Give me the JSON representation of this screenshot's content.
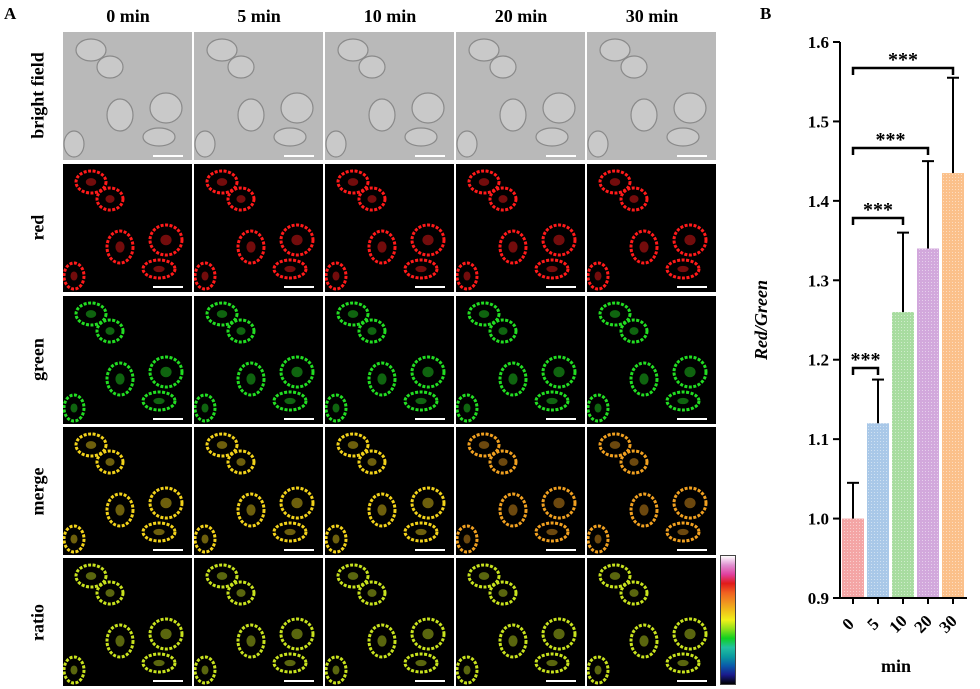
{
  "panel_a": {
    "letter": "A",
    "columns": [
      "0 min",
      "5 min",
      "10 min",
      "20 min",
      "30 min"
    ],
    "rows": [
      "bright field",
      "red",
      "green",
      "merge",
      "ratio"
    ]
  },
  "panel_b": {
    "letter": "B"
  },
  "colors": {
    "bright_field_bg": "#b9b9b9",
    "red_channel": "#ff1a1a",
    "green_channel": "#22dd22",
    "merge_early": "#f2d21a",
    "merge_late": "#f0a020",
    "ratio_cell": "#c8e21e",
    "bar_0": "#f4a5a5",
    "bar_5": "#a9c8e8",
    "bar_10": "#a8dca0",
    "bar_20": "#d2a8dc",
    "bar_30": "#fbc08a"
  },
  "colorbar": {
    "stops": [
      "#000000",
      "#1a1a8c",
      "#0a5aaa",
      "#0a9aa0",
      "#22c0a0",
      "#10d020",
      "#8ce01a",
      "#f0f01a",
      "#f0c01a",
      "#f09020",
      "#f06020",
      "#e01a1a",
      "#e040a0",
      "#e090d0",
      "#ffffff"
    ]
  },
  "chart_data": {
    "type": "bar",
    "categories": [
      "0",
      "5",
      "10",
      "20",
      "30"
    ],
    "values": [
      1.0,
      1.12,
      1.26,
      1.34,
      1.435
    ],
    "errors": [
      0.045,
      0.055,
      0.1,
      0.11,
      0.12
    ],
    "xlabel": "min",
    "ylabel": "Red/Green",
    "ylim": [
      0.9,
      1.6
    ],
    "yticks": [
      "0.9",
      "1.0",
      "1.1",
      "1.2",
      "1.3",
      "1.4",
      "1.5",
      "1.6"
    ],
    "significance": [
      {
        "from": "0",
        "to": "5",
        "label": "***"
      },
      {
        "from": "0",
        "to": "10",
        "label": "***"
      },
      {
        "from": "0",
        "to": "20",
        "label": "***"
      },
      {
        "from": "0",
        "to": "30",
        "label": "***"
      }
    ]
  }
}
